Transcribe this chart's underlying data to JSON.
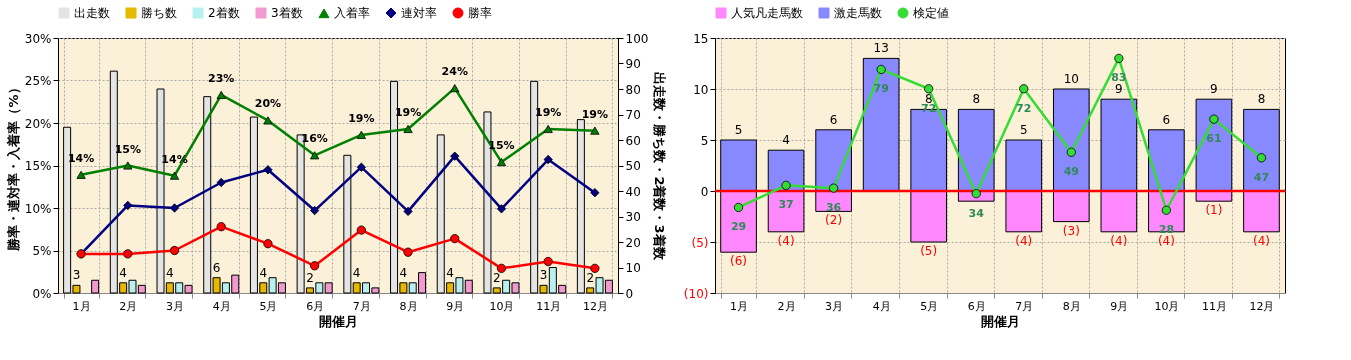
{
  "chart_data": [
    {
      "type": "bar",
      "xlabel": "開催月",
      "ylabel": "勝率・連対率・入着率（%）",
      "y2label": "出走数・勝ち数・2着数・3着数",
      "categories": [
        "1月",
        "2月",
        "3月",
        "4月",
        "5月",
        "6月",
        "7月",
        "8月",
        "9月",
        "10月",
        "11月",
        "12月"
      ],
      "ylim": [
        0,
        30
      ],
      "yticks": [
        {
          "value": 0,
          "label": "0%"
        },
        {
          "value": 5,
          "label": "5%"
        },
        {
          "value": 10,
          "label": "10%"
        },
        {
          "value": 15,
          "label": "15%"
        },
        {
          "value": 20,
          "label": "20%"
        },
        {
          "value": 25,
          "label": "25%"
        },
        {
          "value": 30,
          "label": "30%"
        }
      ],
      "y2lim": [
        0,
        100
      ],
      "y2ticks": [
        0,
        10,
        20,
        30,
        40,
        50,
        60,
        70,
        80,
        90,
        100
      ],
      "grid": true,
      "legend": "top",
      "series": [
        {
          "name": "出走数",
          "axis": "y2",
          "color": "#e4e4e4",
          "values": [
            65,
            87,
            80,
            77,
            69,
            62,
            54,
            83,
            62,
            71,
            83,
            68
          ]
        },
        {
          "name": "勝ち数",
          "axis": "y2",
          "color": "#e6b800",
          "values": [
            3,
            4,
            4,
            6,
            4,
            2,
            4,
            4,
            4,
            2,
            3,
            2
          ],
          "value_labels": [
            "3",
            "4",
            "4",
            "6",
            "4",
            "2",
            "4",
            "4",
            "4",
            "2",
            "3",
            "2"
          ]
        },
        {
          "name": "2着数",
          "axis": "y2",
          "color": "#b8f0f0",
          "values": [
            null,
            5,
            4,
            4,
            6,
            4,
            4,
            4,
            6,
            5,
            10,
            6
          ]
        },
        {
          "name": "3着数",
          "axis": "y2",
          "color": "#f09ad0",
          "values": [
            5,
            3,
            3,
            7,
            4,
            4,
            2,
            8,
            5,
            4,
            3,
            5
          ]
        },
        {
          "name": "入着率",
          "type": "line",
          "color": "#008000",
          "marker": "triangle",
          "values": [
            13.9,
            15.0,
            13.8,
            23.3,
            20.3,
            16.2,
            18.6,
            19.3,
            24.1,
            15.4,
            19.3,
            19.1
          ],
          "value_labels": [
            "14%",
            "15%",
            "14%",
            "23%",
            "20%",
            "16%",
            "19%",
            "19%",
            "24%",
            "15%",
            "19%",
            "19%"
          ]
        },
        {
          "name": "連対率",
          "type": "line",
          "color": "#000080",
          "marker": "diamond",
          "values": [
            4.6,
            10.3,
            10.0,
            13.0,
            14.5,
            9.7,
            14.8,
            9.6,
            16.1,
            9.9,
            15.7,
            11.8
          ]
        },
        {
          "name": "勝率",
          "type": "line",
          "color": "#ff0000",
          "marker": "circle",
          "values": [
            4.6,
            4.6,
            5.0,
            7.8,
            5.8,
            3.2,
            7.4,
            4.8,
            6.4,
            2.9,
            3.7,
            2.9
          ]
        }
      ]
    },
    {
      "type": "bar",
      "xlabel": "開催月",
      "categories": [
        "1月",
        "2月",
        "3月",
        "4月",
        "5月",
        "6月",
        "7月",
        "8月",
        "9月",
        "10月",
        "11月",
        "12月"
      ],
      "stacked": true,
      "ylim": [
        -10,
        15
      ],
      "yticks": [
        {
          "value": -10,
          "label": "(10)"
        },
        {
          "value": -5,
          "label": "(5)"
        },
        0,
        5,
        10,
        15
      ],
      "y2lim": [
        -2,
        90.4
      ],
      "grid": true,
      "legend": "top",
      "ref_lines": [
        {
          "axis": "y",
          "value": 0,
          "color": "#ff0000"
        }
      ],
      "series": [
        {
          "name": "人気凡走馬数",
          "color": "#ff88ff",
          "values": [
            -6,
            -4,
            -2,
            null,
            -5,
            -1,
            -4,
            -3,
            -4,
            -4,
            -1,
            -4
          ],
          "value_labels": [
            "(6)",
            "(4)",
            "(2)",
            null,
            "(5)",
            null,
            "(4)",
            "(3)",
            "(4)",
            "(4)",
            "(1)",
            "(4)"
          ]
        },
        {
          "name": "激走馬数",
          "color": "#8888ff",
          "values": [
            5,
            4,
            6,
            13,
            8,
            8,
            5,
            10,
            9,
            6,
            9,
            8
          ],
          "value_labels": [
            "5",
            "4",
            "6",
            "13",
            "8",
            "8",
            "5",
            "10",
            "9",
            "6",
            "9",
            "8"
          ]
        },
        {
          "name": "検定値",
          "type": "line",
          "axis": "y2",
          "color": "#33dd33",
          "marker": "circle",
          "values": [
            29,
            37,
            36,
            79,
            72,
            34,
            72,
            49,
            83,
            28,
            61,
            47
          ],
          "value_labels": [
            "29",
            "37",
            "36",
            "79",
            "72",
            "34",
            "72",
            "49",
            "83",
            "28",
            "61",
            "47"
          ]
        }
      ]
    }
  ]
}
